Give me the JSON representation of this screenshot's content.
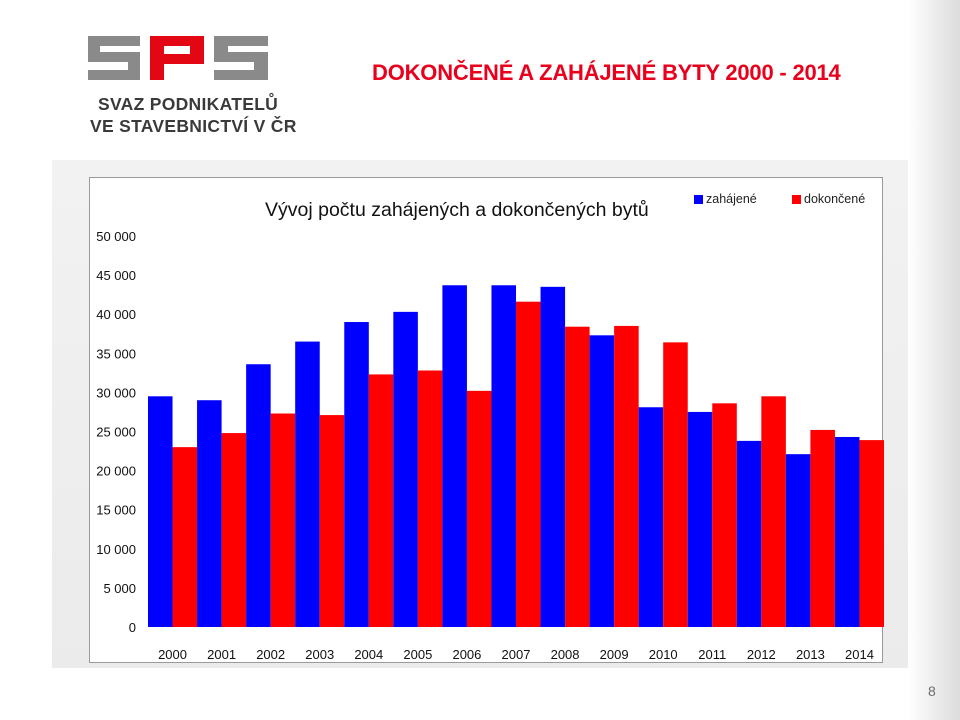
{
  "slide": {
    "title": "DOKONČENÉ A ZAHÁJENÉ BYTY 2000 - 2014",
    "page_number": "8",
    "logo": {
      "letters": "SPS",
      "line1": "SVAZ PODNIKATELŮ",
      "line2": "VE STAVEBNICTVÍ V ČR"
    }
  },
  "colors": {
    "title": "#e8001c",
    "zahajene": "#0000ff",
    "dokoncene": "#ff0000",
    "logo_gray": "#8a8a8a",
    "logo_red": "#e30613"
  },
  "chart_data": {
    "type": "bar",
    "title": "Vývoj počtu zahájených a dokončených bytů",
    "xlabel": "",
    "ylabel": "",
    "ylim": [
      0,
      50000
    ],
    "yticks": [
      0,
      5000,
      10000,
      15000,
      20000,
      25000,
      30000,
      35000,
      40000,
      45000,
      50000
    ],
    "ytick_labels": [
      "0",
      "5 000",
      "10 000",
      "15 000",
      "20 000",
      "25 000",
      "30 000",
      "35 000",
      "40 000",
      "45 000",
      "50 000"
    ],
    "grid": false,
    "legend_position": "top-right",
    "categories": [
      "2000",
      "2001",
      "2002",
      "2003",
      "2004",
      "2005",
      "2006",
      "2007",
      "2008",
      "2009",
      "2010",
      "2011",
      "2012",
      "2013",
      "2014"
    ],
    "series": [
      {
        "name": "zahájené",
        "color": "#0000ff",
        "values": [
          29500,
          29000,
          33600,
          36500,
          39000,
          40300,
          43700,
          43700,
          43500,
          37300,
          28100,
          27500,
          23800,
          22100,
          24300
        ]
      },
      {
        "name": "dokončené",
        "color": "#ff0000",
        "values": [
          23000,
          24800,
          27300,
          27100,
          32300,
          32800,
          30200,
          41600,
          38400,
          38500,
          36400,
          28600,
          29500,
          25200,
          23900
        ]
      }
    ]
  }
}
